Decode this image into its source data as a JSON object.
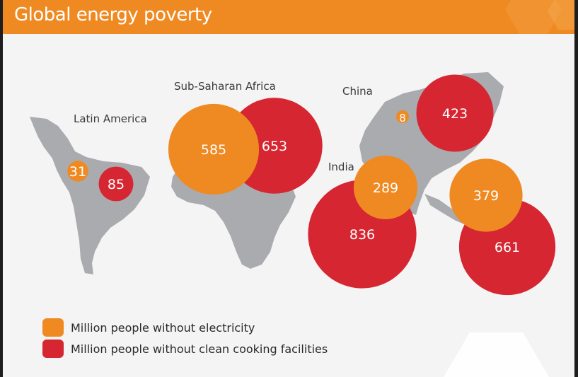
{
  "title": "Global energy poverty",
  "colors": {
    "electricity": "#ef8a22",
    "cooking": "#d62631",
    "map": "#a9abaf",
    "header": "#ef8a22"
  },
  "legend": [
    {
      "key": "electricity",
      "label": "Million people without electricity"
    },
    {
      "key": "cooking",
      "label": "Million people without clean cooking facilities"
    }
  ],
  "chart_data": {
    "type": "bubble",
    "title": "Global energy poverty",
    "unit": "Million people",
    "regions": [
      {
        "name": "Latin America",
        "electricity": 31,
        "cooking": 85
      },
      {
        "name": "Sub-Saharan Africa",
        "electricity": 585,
        "cooking": 653
      },
      {
        "name": "China",
        "electricity": 8,
        "cooking": 423
      },
      {
        "name": "India",
        "electricity": 289,
        "cooking": 836
      },
      {
        "name": "",
        "electricity": 379,
        "cooking": 661
      }
    ],
    "series": [
      {
        "name": "Million people without electricity",
        "key": "electricity"
      },
      {
        "name": "Million people without clean cooking facilities",
        "key": "cooking"
      }
    ]
  }
}
